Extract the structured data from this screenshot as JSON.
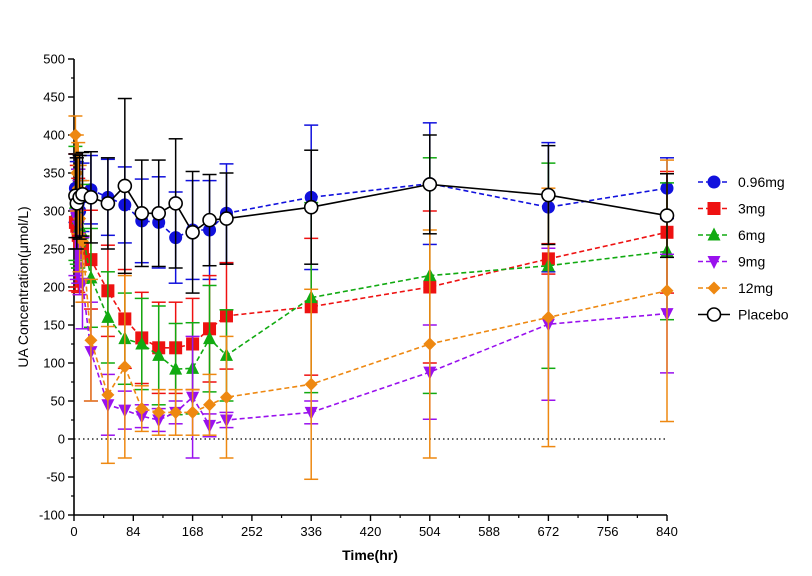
{
  "chart_data": {
    "type": "line",
    "title": "",
    "xlabel": "Time(hr)",
    "ylabel": "UA Concentration(μmol/L)",
    "xlim": [
      0,
      840
    ],
    "ylim": [
      -100,
      500
    ],
    "xticks": [
      0,
      84,
      168,
      252,
      336,
      420,
      504,
      588,
      672,
      756,
      840
    ],
    "yticks": [
      -100,
      -50,
      0,
      50,
      100,
      150,
      200,
      250,
      300,
      350,
      400,
      450,
      500
    ],
    "reference_line": {
      "y": 0,
      "style": "dotted"
    },
    "legend_position": "right",
    "series": [
      {
        "name": "0.96mg",
        "color": "#1111dd",
        "marker": "circle",
        "linestyle": "dashed",
        "x": [
          2,
          4,
          6,
          8,
          12,
          24,
          48,
          72,
          96,
          120,
          144,
          168,
          192,
          216,
          336,
          504,
          672,
          840
        ],
        "y": [
          330,
          325,
          310,
          300,
          318,
          328,
          318,
          308,
          287,
          285,
          265,
          275,
          275,
          297,
          318,
          336,
          305,
          330
        ],
        "err": [
          45,
          40,
          45,
          40,
          45,
          45,
          50,
          50,
          55,
          60,
          60,
          65,
          65,
          65,
          95,
          80,
          85,
          40
        ]
      },
      {
        "name": "3mg",
        "color": "#ee1111",
        "marker": "square",
        "linestyle": "dashed",
        "x": [
          2,
          4,
          6,
          8,
          12,
          24,
          48,
          72,
          96,
          120,
          144,
          168,
          192,
          216,
          336,
          504,
          672,
          840
        ],
        "y": [
          285,
          280,
          268,
          260,
          250,
          236,
          195,
          158,
          133,
          120,
          120,
          125,
          145,
          162,
          174,
          200,
          237,
          272
        ],
        "err": [
          90,
          80,
          75,
          70,
          70,
          65,
          60,
          65,
          60,
          60,
          60,
          60,
          70,
          70,
          90,
          100,
          20,
          80
        ]
      },
      {
        "name": "6mg",
        "color": "#11aa11",
        "marker": "triangle-up",
        "linestyle": "dashed",
        "x": [
          2,
          4,
          6,
          8,
          12,
          24,
          48,
          72,
          96,
          120,
          144,
          168,
          192,
          216,
          336,
          504,
          672,
          840
        ],
        "y": [
          310,
          300,
          290,
          280,
          270,
          212,
          160,
          132,
          125,
          110,
          92,
          93,
          132,
          110,
          186,
          215,
          228,
          247
        ],
        "err": [
          75,
          70,
          65,
          60,
          65,
          65,
          60,
          60,
          60,
          65,
          60,
          60,
          70,
          60,
          125,
          155,
          135,
          90
        ]
      },
      {
        "name": "9mg",
        "color": "#9911ee",
        "marker": "triangle-down",
        "linestyle": "dashed",
        "x": [
          2,
          4,
          6,
          8,
          12,
          24,
          48,
          72,
          96,
          120,
          144,
          168,
          192,
          216,
          336,
          504,
          672,
          840
        ],
        "y": [
          295,
          290,
          280,
          265,
          205,
          115,
          45,
          38,
          30,
          25,
          35,
          55,
          18,
          25,
          35,
          88,
          151,
          165
        ],
        "err": [
          80,
          80,
          75,
          75,
          60,
          65,
          40,
          25,
          15,
          15,
          15,
          80,
          15,
          10,
          15,
          62,
          100,
          78
        ]
      },
      {
        "name": "12mg",
        "color": "#ee8811",
        "marker": "diamond",
        "linestyle": "dashed",
        "x": [
          2,
          4,
          6,
          8,
          12,
          24,
          48,
          72,
          96,
          120,
          144,
          168,
          192,
          216,
          336,
          504,
          672,
          840
        ],
        "y": [
          400,
          350,
          330,
          290,
          260,
          130,
          58,
          95,
          40,
          35,
          35,
          35,
          45,
          55,
          72,
          125,
          160,
          195
        ],
        "err": [
          25,
          50,
          60,
          70,
          80,
          80,
          90,
          120,
          30,
          30,
          30,
          30,
          40,
          80,
          125,
          150,
          170,
          172
        ]
      },
      {
        "name": "Placebo",
        "color": "#000000",
        "marker": "open-circle",
        "linestyle": "solid",
        "x": [
          2,
          4,
          8,
          12,
          24,
          48,
          72,
          96,
          120,
          144,
          168,
          192,
          216,
          336,
          504,
          672,
          840
        ],
        "y": [
          320,
          310,
          318,
          322,
          318,
          310,
          333,
          297,
          297,
          310,
          272,
          288,
          290,
          305,
          335,
          321,
          294
        ],
        "err": [
          55,
          60,
          55,
          55,
          60,
          60,
          115,
          70,
          70,
          85,
          80,
          60,
          60,
          75,
          65,
          65,
          55
        ]
      }
    ]
  }
}
